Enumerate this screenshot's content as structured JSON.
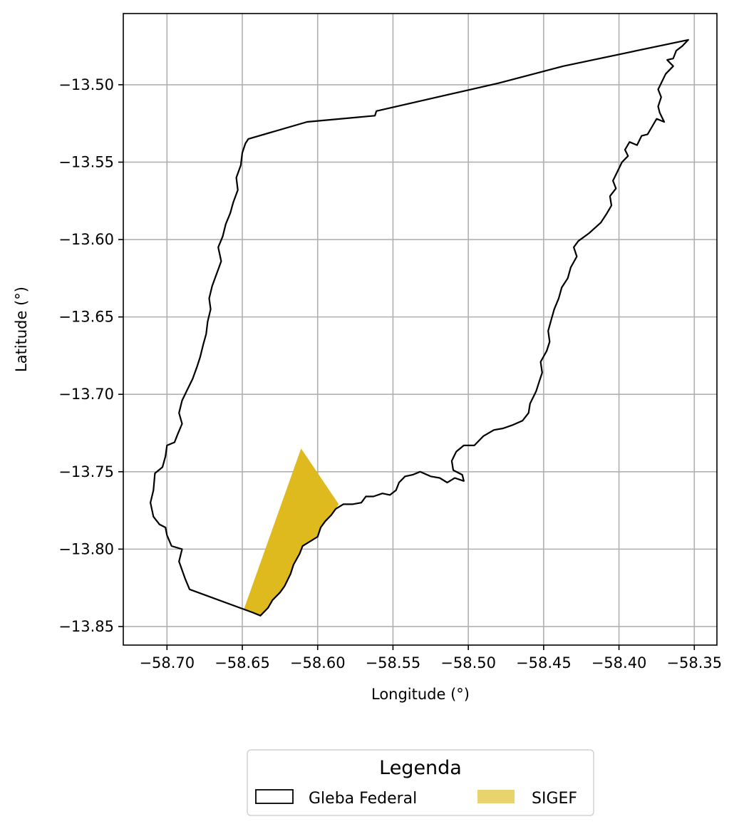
{
  "chart_data": {
    "type": "map",
    "xlabel": "Longitude (°)",
    "ylabel": "Latitude (°)",
    "xlim": [
      -58.729,
      -58.335
    ],
    "ylim": [
      -13.862,
      -13.454
    ],
    "x_ticks": [
      -58.7,
      -58.65,
      -58.6,
      -58.55,
      -58.5,
      -58.45,
      -58.4,
      -58.35
    ],
    "x_tick_labels": [
      "−58.70",
      "−58.65",
      "−58.60",
      "−58.55",
      "−58.50",
      "−58.45",
      "−58.40",
      "−58.35"
    ],
    "y_ticks": [
      -13.5,
      -13.55,
      -13.6,
      -13.65,
      -13.7,
      -13.75,
      -13.8,
      -13.85
    ],
    "y_tick_labels": [
      "−13.50",
      "−13.55",
      "−13.60",
      "−13.65",
      "−13.70",
      "−13.75",
      "−13.80",
      "−13.85"
    ],
    "grid": true,
    "legend": {
      "title": "Legenda",
      "placement": "bottom-center-outside",
      "entries": [
        {
          "label": "Gleba Federal",
          "style": "outline",
          "color": "#000000"
        },
        {
          "label": "SIGEF",
          "style": "fill",
          "color": "#e8d36c"
        }
      ]
    },
    "series": [
      {
        "name": "Gleba Federal",
        "kind": "polygon-outline",
        "color": "#000000",
        "points": [
          [
            -58.354,
            -13.471
          ],
          [
            -58.358,
            -13.475
          ],
          [
            -58.362,
            -13.478
          ],
          [
            -58.364,
            -13.483
          ],
          [
            -58.368,
            -13.484
          ],
          [
            -58.364,
            -13.488
          ],
          [
            -58.369,
            -13.493
          ],
          [
            -58.372,
            -13.499
          ],
          [
            -58.374,
            -13.503
          ],
          [
            -58.372,
            -13.508
          ],
          [
            -58.374,
            -13.514
          ],
          [
            -58.373,
            -13.518
          ],
          [
            -58.37,
            -13.524
          ],
          [
            -58.375,
            -13.522
          ],
          [
            -58.378,
            -13.527
          ],
          [
            -58.381,
            -13.532
          ],
          [
            -58.385,
            -13.533
          ],
          [
            -58.388,
            -13.539
          ],
          [
            -58.393,
            -13.537
          ],
          [
            -58.396,
            -13.542
          ],
          [
            -58.394,
            -13.546
          ],
          [
            -58.398,
            -13.55
          ],
          [
            -58.401,
            -13.556
          ],
          [
            -58.404,
            -13.562
          ],
          [
            -58.402,
            -13.567
          ],
          [
            -58.406,
            -13.572
          ],
          [
            -58.405,
            -13.578
          ],
          [
            -58.408,
            -13.583
          ],
          [
            -58.412,
            -13.589
          ],
          [
            -58.42,
            -13.596
          ],
          [
            -58.427,
            -13.601
          ],
          [
            -58.43,
            -13.605
          ],
          [
            -58.428,
            -13.611
          ],
          [
            -58.432,
            -13.618
          ],
          [
            -58.434,
            -13.625
          ],
          [
            -58.438,
            -13.631
          ],
          [
            -58.44,
            -13.638
          ],
          [
            -58.443,
            -13.645
          ],
          [
            -58.445,
            -13.652
          ],
          [
            -58.447,
            -13.659
          ],
          [
            -58.446,
            -13.666
          ],
          [
            -58.448,
            -13.672
          ],
          [
            -58.452,
            -13.679
          ],
          [
            -58.451,
            -13.686
          ],
          [
            -58.453,
            -13.692
          ],
          [
            -58.455,
            -13.698
          ],
          [
            -58.459,
            -13.706
          ],
          [
            -58.46,
            -13.712
          ],
          [
            -58.464,
            -13.717
          ],
          [
            -58.471,
            -13.72
          ],
          [
            -58.477,
            -13.722
          ],
          [
            -58.483,
            -13.723
          ],
          [
            -58.49,
            -13.727
          ],
          [
            -58.496,
            -13.733
          ],
          [
            -58.503,
            -13.733
          ],
          [
            -58.508,
            -13.737
          ],
          [
            -58.511,
            -13.743
          ],
          [
            -58.51,
            -13.749
          ],
          [
            -58.504,
            -13.752
          ],
          [
            -58.503,
            -13.756
          ],
          [
            -58.509,
            -13.754
          ],
          [
            -58.514,
            -13.757
          ],
          [
            -58.519,
            -13.754
          ],
          [
            -58.525,
            -13.753
          ],
          [
            -58.532,
            -13.75
          ],
          [
            -58.537,
            -13.752
          ],
          [
            -58.542,
            -13.753
          ],
          [
            -58.546,
            -13.757
          ],
          [
            -58.548,
            -13.762
          ],
          [
            -58.552,
            -13.765
          ],
          [
            -58.557,
            -13.764
          ],
          [
            -58.563,
            -13.766
          ],
          [
            -58.568,
            -13.766
          ],
          [
            -58.571,
            -13.77
          ],
          [
            -58.577,
            -13.771
          ],
          [
            -58.583,
            -13.771
          ],
          [
            -58.588,
            -13.774
          ],
          [
            -58.591,
            -13.778
          ],
          [
            -58.595,
            -13.782
          ],
          [
            -58.598,
            -13.786
          ],
          [
            -58.6,
            -13.792
          ],
          [
            -58.605,
            -13.795
          ],
          [
            -58.61,
            -13.798
          ],
          [
            -58.612,
            -13.803
          ],
          [
            -58.616,
            -13.81
          ],
          [
            -58.618,
            -13.816
          ],
          [
            -58.622,
            -13.824
          ],
          [
            -58.625,
            -13.828
          ],
          [
            -58.63,
            -13.833
          ],
          [
            -58.633,
            -13.838
          ],
          [
            -58.638,
            -13.843
          ],
          [
            -58.643,
            -13.841
          ],
          [
            -58.685,
            -13.826
          ],
          [
            -58.688,
            -13.819
          ],
          [
            -58.692,
            -13.808
          ],
          [
            -58.69,
            -13.8
          ],
          [
            -58.697,
            -13.798
          ],
          [
            -58.7,
            -13.791
          ],
          [
            -58.701,
            -13.786
          ],
          [
            -58.705,
            -13.784
          ],
          [
            -58.709,
            -13.779
          ],
          [
            -58.711,
            -13.77
          ],
          [
            -58.709,
            -13.762
          ],
          [
            -58.708,
            -13.751
          ],
          [
            -58.703,
            -13.747
          ],
          [
            -58.701,
            -13.74
          ],
          [
            -58.7,
            -13.733
          ],
          [
            -58.695,
            -13.731
          ],
          [
            -58.693,
            -13.726
          ],
          [
            -58.69,
            -13.719
          ],
          [
            -58.692,
            -13.712
          ],
          [
            -58.69,
            -13.704
          ],
          [
            -58.687,
            -13.698
          ],
          [
            -58.683,
            -13.69
          ],
          [
            -58.68,
            -13.682
          ],
          [
            -58.678,
            -13.676
          ],
          [
            -58.676,
            -13.668
          ],
          [
            -58.674,
            -13.661
          ],
          [
            -58.673,
            -13.653
          ],
          [
            -58.671,
            -13.645
          ],
          [
            -58.672,
            -13.638
          ],
          [
            -58.67,
            -13.63
          ],
          [
            -58.667,
            -13.622
          ],
          [
            -58.664,
            -13.614
          ],
          [
            -58.666,
            -13.605
          ],
          [
            -58.663,
            -13.598
          ],
          [
            -58.661,
            -13.59
          ],
          [
            -58.658,
            -13.583
          ],
          [
            -58.656,
            -13.576
          ],
          [
            -58.653,
            -13.568
          ],
          [
            -58.654,
            -13.56
          ],
          [
            -58.651,
            -13.552
          ],
          [
            -58.65,
            -13.544
          ],
          [
            -58.648,
            -13.538
          ],
          [
            -58.646,
            -13.535
          ],
          [
            -58.607,
            -13.524
          ],
          [
            -58.562,
            -13.52
          ],
          [
            -58.561,
            -13.517
          ],
          [
            -58.48,
            -13.499
          ],
          [
            -58.437,
            -13.488
          ],
          [
            -58.354,
            -13.471
          ]
        ]
      },
      {
        "name": "SIGEF",
        "kind": "polygon-fill",
        "color": "#dfba1e",
        "points": [
          [
            -58.611,
            -13.735
          ],
          [
            -58.586,
            -13.771
          ],
          [
            -58.588,
            -13.774
          ],
          [
            -58.591,
            -13.778
          ],
          [
            -58.595,
            -13.782
          ],
          [
            -58.598,
            -13.786
          ],
          [
            -58.6,
            -13.792
          ],
          [
            -58.605,
            -13.795
          ],
          [
            -58.61,
            -13.798
          ],
          [
            -58.612,
            -13.803
          ],
          [
            -58.616,
            -13.81
          ],
          [
            -58.618,
            -13.816
          ],
          [
            -58.622,
            -13.824
          ],
          [
            -58.625,
            -13.828
          ],
          [
            -58.63,
            -13.833
          ],
          [
            -58.633,
            -13.838
          ],
          [
            -58.638,
            -13.843
          ],
          [
            -58.643,
            -13.841
          ],
          [
            -58.649,
            -13.839
          ]
        ]
      }
    ]
  }
}
